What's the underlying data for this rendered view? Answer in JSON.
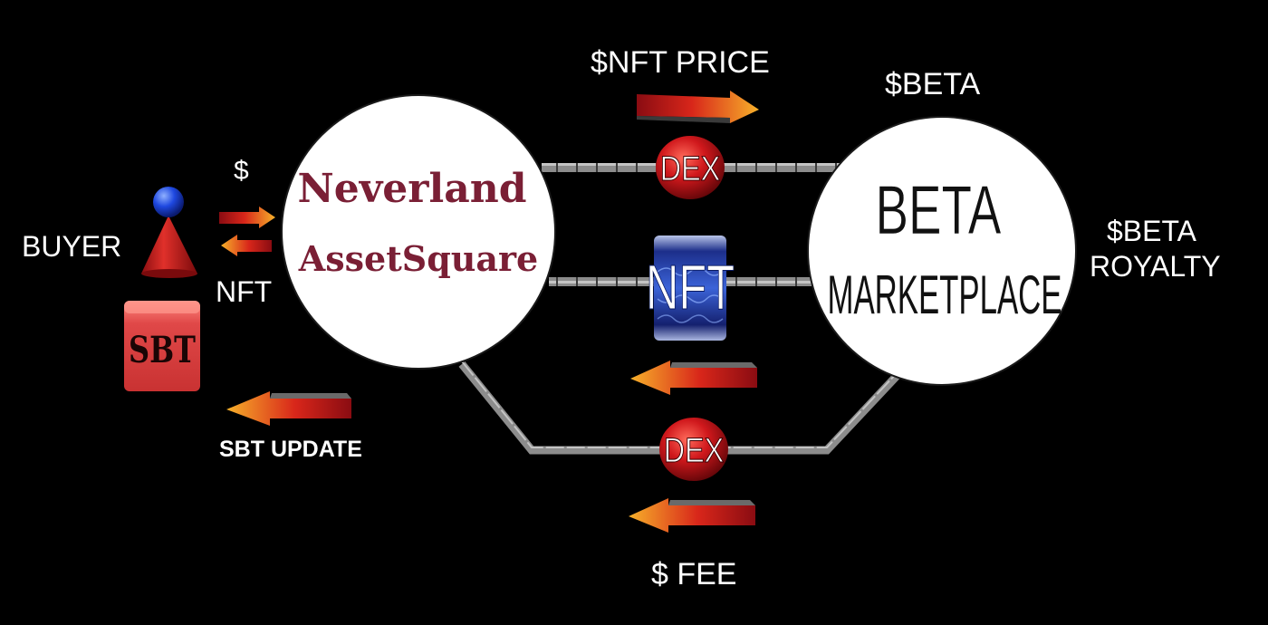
{
  "colors": {
    "background": "#000000",
    "label_text": "#ffffff",
    "neverland_text": "#7a1f35",
    "node_fill": "#ffffff",
    "connector": "#7a7a7a",
    "dex_red": "#c0151a",
    "arrow_orange": "#f39a1e",
    "arrow_red": "#b3121a",
    "sbt_red": "#d84040",
    "buyer_cone": "#c41a1a",
    "buyer_head": "#1a3fd6",
    "nft_blue": "#1f3da8"
  },
  "labels": {
    "buyer": "BUYER",
    "dollar": "$",
    "nft": "NFT",
    "sbt_update": "SBT UPDATE",
    "nft_price": "$NFT PRICE",
    "beta_token": "$BETA",
    "beta_royalty_line1": "$BETA",
    "beta_royalty_line2": "ROYALTY",
    "fee": "$ FEE"
  },
  "nodes": {
    "neverland_line1": "Neverland",
    "neverland_line2": "AssetSquare",
    "beta_line1": "BETA",
    "beta_line2": "MARKETPLACE",
    "dex_top": "DEX",
    "dex_bottom": "DEX",
    "nft_card": "NFT",
    "sbt_badge": "SBT"
  },
  "icons": {
    "buyer": "person-cone-icon",
    "sbt": "sbt-badge-icon",
    "nft": "nft-card-icon",
    "dex": "dex-ball-icon",
    "arrow": "gradient-arrow-icon"
  }
}
